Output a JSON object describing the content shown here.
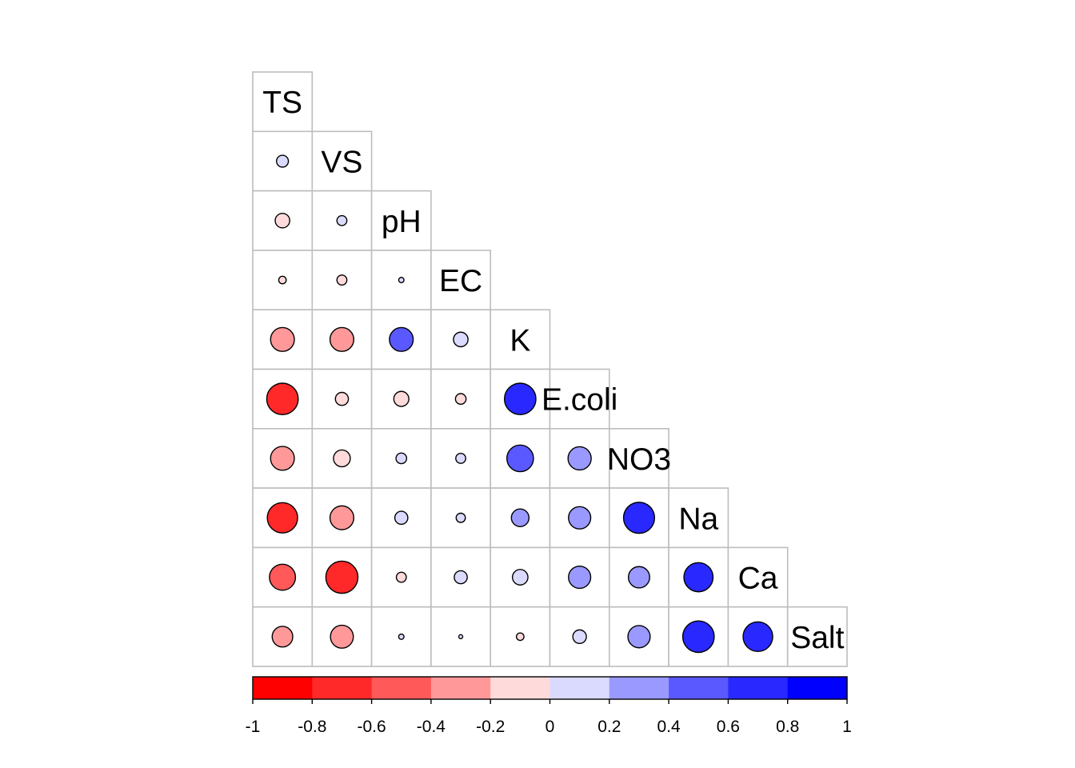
{
  "chart_data": {
    "type": "heatmap",
    "subtype": "correlation-matrix-lower-triangle-circles",
    "variables": [
      "TS",
      "VS",
      "pH",
      "EC",
      "K",
      "E.coli",
      "NO3",
      "Na",
      "Ca",
      "Salt"
    ],
    "correlations": [
      [],
      [
        0.1
      ],
      [
        -0.15,
        0.07
      ],
      [
        -0.04,
        -0.07,
        0.02
      ],
      [
        -0.4,
        -0.4,
        0.4,
        0.15
      ],
      [
        -0.7,
        -0.12,
        -0.16,
        -0.08,
        0.7
      ],
      [
        -0.4,
        -0.2,
        0.08,
        0.07,
        0.5,
        0.38
      ],
      [
        -0.65,
        -0.4,
        0.12,
        0.06,
        0.22,
        0.35,
        0.68
      ],
      [
        -0.48,
        -0.73,
        -0.07,
        0.12,
        0.17,
        0.35,
        0.32,
        0.6
      ],
      [
        -0.3,
        -0.37,
        0.02,
        0.01,
        -0.04,
        0.13,
        0.35,
        0.7,
        0.62
      ]
    ],
    "colorbar": {
      "range": [
        -1,
        1
      ],
      "tick_labels": [
        "-1",
        "-0.8",
        "-0.6",
        "-0.4",
        "-0.2",
        "0",
        "0.2",
        "0.4",
        "0.6",
        "0.8",
        "1"
      ],
      "colors": [
        "#ff0000",
        "#ff2929",
        "#ff5959",
        "#ff9999",
        "#ffdada",
        "#dadaff",
        "#9999ff",
        "#5959ff",
        "#2929ff",
        "#0000ff"
      ]
    },
    "legend_placement": "bottom"
  }
}
